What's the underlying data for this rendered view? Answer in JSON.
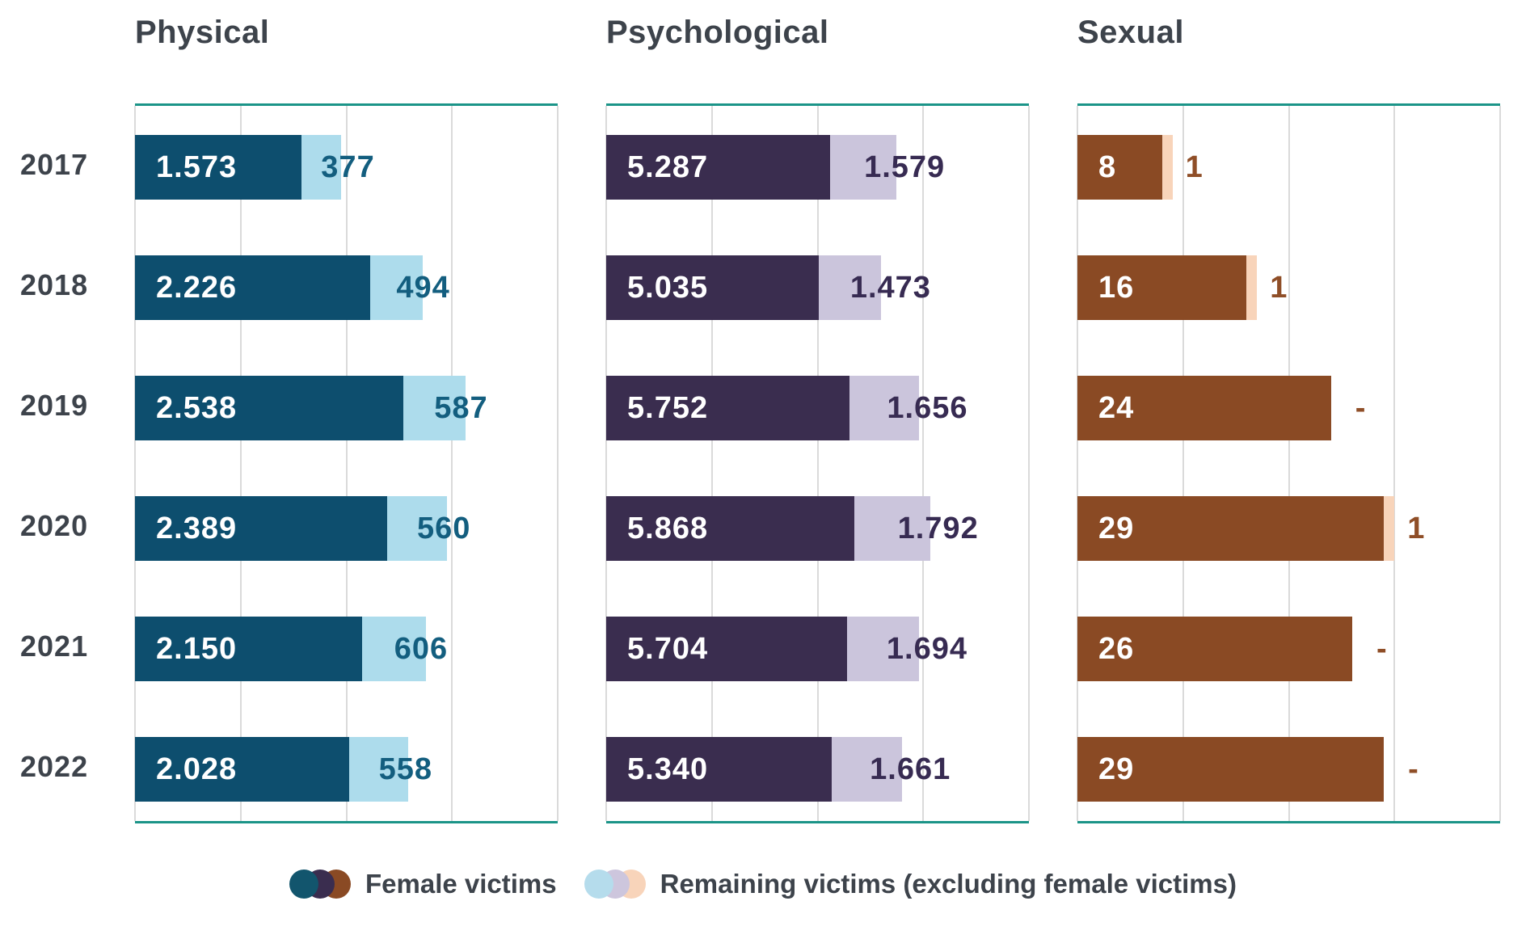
{
  "years": [
    "2017",
    "2018",
    "2019",
    "2020",
    "2021",
    "2022"
  ],
  "palette": {
    "border_teal": "#1b9488",
    "gridline": "#dadada",
    "text": "#3d434b"
  },
  "legend": {
    "female": {
      "label": "Female victims",
      "dot_colors": [
        "#12556d",
        "#3a2d4f",
        "#8a4a24"
      ]
    },
    "remaining": {
      "label": "Remaining victims (excluding female victims)",
      "dot_colors": [
        "#b5dcec",
        "#cdc6dd",
        "#f8d4ba"
      ]
    }
  },
  "chart_data": [
    {
      "type": "bar",
      "orientation": "horizontal",
      "stacked": true,
      "title": "Physical",
      "categories": [
        "2017",
        "2018",
        "2019",
        "2020",
        "2021",
        "2022"
      ],
      "series": [
        {
          "name": "Female victims",
          "values": [
            1573,
            2226,
            2538,
            2389,
            2150,
            2028
          ]
        },
        {
          "name": "Remaining victims (excluding female victims)",
          "values": [
            377,
            494,
            587,
            560,
            606,
            558
          ]
        }
      ],
      "value_labels": {
        "female": [
          "1.573",
          "2.226",
          "2.538",
          "2.389",
          "2.150",
          "2.028"
        ],
        "remaining": [
          "377",
          "494",
          "587",
          "560",
          "606",
          "558"
        ]
      },
      "xlim": [
        0,
        4000
      ],
      "gridline_step": 1000,
      "grid": true,
      "colors": {
        "female": "#0d4e6e",
        "remaining": "#addcec",
        "outside_label": "#135e7f"
      }
    },
    {
      "type": "bar",
      "orientation": "horizontal",
      "stacked": true,
      "title": "Psychological",
      "categories": [
        "2017",
        "2018",
        "2019",
        "2020",
        "2021",
        "2022"
      ],
      "series": [
        {
          "name": "Female victims",
          "values": [
            5287,
            5035,
            5752,
            5868,
            5704,
            5340
          ]
        },
        {
          "name": "Remaining victims (excluding female victims)",
          "values": [
            1579,
            1473,
            1656,
            1792,
            1694,
            1661
          ]
        }
      ],
      "value_labels": {
        "female": [
          "5.287",
          "5.035",
          "5.752",
          "5.868",
          "5.704",
          "5.340"
        ],
        "remaining": [
          "1.579",
          "1.473",
          "1.656",
          "1.792",
          "1.694",
          "1.661"
        ]
      },
      "xlim": [
        0,
        10000
      ],
      "gridline_step": 2500,
      "grid": true,
      "colors": {
        "female": "#3a2d4f",
        "remaining": "#cbc5dc",
        "outside_label": "#372b52"
      }
    },
    {
      "type": "bar",
      "orientation": "horizontal",
      "stacked": true,
      "title": "Sexual",
      "categories": [
        "2017",
        "2018",
        "2019",
        "2020",
        "2021",
        "2022"
      ],
      "series": [
        {
          "name": "Female victims",
          "values": [
            8,
            16,
            24,
            29,
            26,
            29
          ]
        },
        {
          "name": "Remaining victims (excluding female victims)",
          "values": [
            1,
            1,
            0,
            1,
            0,
            0
          ]
        }
      ],
      "value_labels": {
        "female": [
          "8",
          "16",
          "24",
          "29",
          "26",
          "29"
        ],
        "remaining": [
          "1",
          "1",
          "-",
          "1",
          "-",
          "-"
        ]
      },
      "xlim": [
        0,
        40
      ],
      "gridline_step": 10,
      "grid": true,
      "colors": {
        "female": "#8a4a24",
        "remaining": "#f8d4ba",
        "outside_label": "#8f4e27"
      }
    }
  ]
}
